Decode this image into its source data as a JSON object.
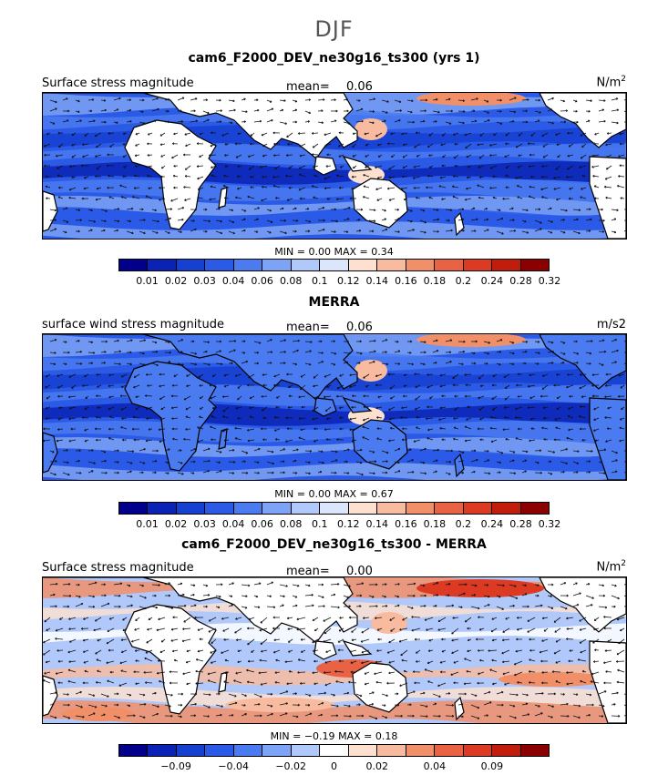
{
  "season": "DJF",
  "colors": {
    "mag": [
      "#00008b",
      "#0a23b4",
      "#1540d0",
      "#2a5ae6",
      "#4a7bf0",
      "#7ca3f5",
      "#b0c8fa",
      "#dbe6fd",
      "#fde0d0",
      "#f8bba0",
      "#f18f69",
      "#e86243",
      "#dc3a22",
      "#c21c0d",
      "#8b0000"
    ],
    "diff": [
      "#00008b",
      "#0a23b4",
      "#1540d0",
      "#2a5ae6",
      "#4a7bf0",
      "#7ca3f5",
      "#b0c8fa",
      "#ffffff",
      "#fde0d0",
      "#f8bba0",
      "#f18f69",
      "#e86243",
      "#dc3a22",
      "#c21c0d",
      "#8b0000"
    ],
    "land": "#ffffff",
    "coast": "#000000"
  },
  "panels": [
    {
      "title": "cam6_F2000_DEV_ne30g16_ts300 (yrs 1)",
      "label": "Surface stress magnitude",
      "mean_label": "mean=",
      "mean": "0.06",
      "units": "N/m",
      "units_sup": "2",
      "min_label": "MIN =",
      "min": "0.00",
      "max_label": "MAX =",
      "max": "0.34",
      "colorbar": "mag",
      "ticks": [
        "0.01",
        "0.02",
        "0.03",
        "0.04",
        "0.06",
        "0.08",
        "0.1",
        "0.12",
        "0.14",
        "0.16",
        "0.18",
        "0.2",
        "0.24",
        "0.28",
        "0.32"
      ]
    },
    {
      "title": "MERRA",
      "label": "surface wind stress magnitude",
      "mean_label": "mean=",
      "mean": "0.06",
      "units": "m/s2",
      "units_sup": "",
      "min_label": "MIN =",
      "min": "0.00",
      "max_label": "MAX =",
      "max": "0.67",
      "colorbar": "mag",
      "ticks": [
        "0.01",
        "0.02",
        "0.03",
        "0.04",
        "0.06",
        "0.08",
        "0.1",
        "0.12",
        "0.14",
        "0.16",
        "0.18",
        "0.2",
        "0.24",
        "0.28",
        "0.32"
      ]
    },
    {
      "title": "cam6_F2000_DEV_ne30g16_ts300 - MERRA",
      "label": "Surface stress magnitude",
      "mean_label": "mean=",
      "mean": "0.00",
      "units": "N/m",
      "units_sup": "2",
      "min_label": "MIN =",
      "min": "−0.19",
      "max_label": "MAX =",
      "max": "0.18",
      "colorbar": "diff",
      "ticks": [
        "−0.09",
        "−0.04",
        "−0.02",
        "0",
        "0.02",
        "0.04",
        "0.09"
      ]
    }
  ],
  "chart_data": [
    {
      "type": "heatmap",
      "title": "cam6_F2000_DEV_ne30g16_ts300 (yrs 1)",
      "field": "Surface stress magnitude",
      "units": "N/m2",
      "mean": 0.06,
      "min": 0.0,
      "max": 0.34,
      "levels": [
        0.01,
        0.02,
        0.03,
        0.04,
        0.06,
        0.08,
        0.1,
        0.12,
        0.14,
        0.16,
        0.18,
        0.2,
        0.24,
        0.28,
        0.32
      ],
      "overlay": "wind stress vectors"
    },
    {
      "type": "heatmap",
      "title": "MERRA",
      "field": "surface wind stress magnitude",
      "units": "m/s2",
      "mean": 0.06,
      "min": 0.0,
      "max": 0.67,
      "levels": [
        0.01,
        0.02,
        0.03,
        0.04,
        0.06,
        0.08,
        0.1,
        0.12,
        0.14,
        0.16,
        0.18,
        0.2,
        0.24,
        0.28,
        0.32
      ],
      "overlay": "wind stress vectors"
    },
    {
      "type": "heatmap",
      "title": "cam6_F2000_DEV_ne30g16_ts300 - MERRA",
      "field": "Surface stress magnitude",
      "units": "N/m2",
      "mean": 0.0,
      "min": -0.19,
      "max": 0.18,
      "levels": [
        -0.09,
        -0.04,
        -0.02,
        0,
        0.02,
        0.04,
        0.09
      ],
      "overlay": "wind stress difference vectors"
    }
  ]
}
